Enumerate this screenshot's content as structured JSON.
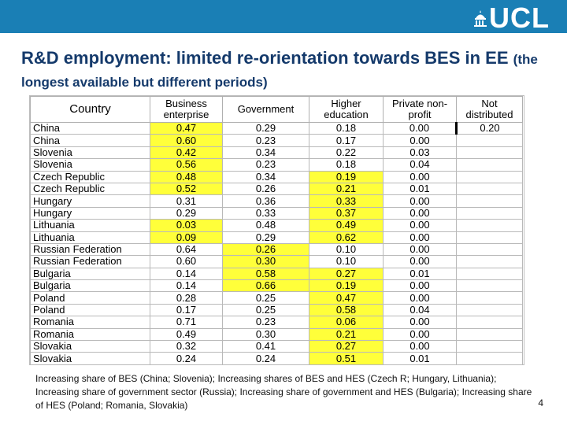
{
  "header": {
    "logo_text": "UCL",
    "accent_color": "#1a7fb5"
  },
  "title": {
    "main": "R&D employment: limited re-orientation towards BES in EE",
    "subtitle": "(the longest available but different periods)"
  },
  "table": {
    "columns": [
      "Country",
      "Business enterprise",
      "Government",
      "Higher education",
      "Private non-profit",
      "Not distributed"
    ],
    "highlight_color": "#ffff3a",
    "rows": [
      {
        "country": "China",
        "values": [
          "0.47",
          "0.29",
          "0.18",
          "0.00",
          "0.20"
        ],
        "highlight": [
          0
        ]
      },
      {
        "country": "China",
        "values": [
          "0.60",
          "0.23",
          "0.17",
          "0.00",
          ""
        ],
        "highlight": [
          0
        ]
      },
      {
        "country": "Slovenia",
        "values": [
          "0.42",
          "0.34",
          "0.22",
          "0.03",
          ""
        ],
        "highlight": [
          0
        ]
      },
      {
        "country": "Slovenia",
        "values": [
          "0.56",
          "0.23",
          "0.18",
          "0.04",
          ""
        ],
        "highlight": [
          0
        ]
      },
      {
        "country": "Czech Republic",
        "values": [
          "0.48",
          "0.34",
          "0.19",
          "0.00",
          ""
        ],
        "highlight": [
          0,
          2
        ]
      },
      {
        "country": "Czech Republic",
        "values": [
          "0.52",
          "0.26",
          "0.21",
          "0.01",
          ""
        ],
        "highlight": [
          0,
          2
        ]
      },
      {
        "country": "Hungary",
        "values": [
          "0.31",
          "0.36",
          "0.33",
          "0.00",
          ""
        ],
        "highlight": [
          2
        ]
      },
      {
        "country": "Hungary",
        "values": [
          "0.29",
          "0.33",
          "0.37",
          "0.00",
          ""
        ],
        "highlight": [
          2
        ]
      },
      {
        "country": "Lithuania",
        "values": [
          "0.03",
          "0.48",
          "0.49",
          "0.00",
          ""
        ],
        "highlight": [
          0,
          2
        ]
      },
      {
        "country": "Lithuania",
        "values": [
          "0.09",
          "0.29",
          "0.62",
          "0.00",
          ""
        ],
        "highlight": [
          0,
          2
        ]
      },
      {
        "country": "Russian Federation",
        "values": [
          "0.64",
          "0.26",
          "0.10",
          "0.00",
          ""
        ],
        "highlight": [
          1
        ]
      },
      {
        "country": "Russian Federation",
        "values": [
          "0.60",
          "0.30",
          "0.10",
          "0.00",
          ""
        ],
        "highlight": [
          1
        ]
      },
      {
        "country": "Bulgaria",
        "values": [
          "0.14",
          "0.58",
          "0.27",
          "0.01",
          ""
        ],
        "highlight": [
          1,
          2
        ]
      },
      {
        "country": "Bulgaria",
        "values": [
          "0.14",
          "0.66",
          "0.19",
          "0.00",
          ""
        ],
        "highlight": [
          1,
          2
        ]
      },
      {
        "country": "Poland",
        "values": [
          "0.28",
          "0.25",
          "0.47",
          "0.00",
          ""
        ],
        "highlight": [
          2
        ]
      },
      {
        "country": "Poland",
        "values": [
          "0.17",
          "0.25",
          "0.58",
          "0.04",
          ""
        ],
        "highlight": [
          2
        ]
      },
      {
        "country": "Romania",
        "values": [
          "0.71",
          "0.23",
          "0.06",
          "0.00",
          ""
        ],
        "highlight": [
          2
        ]
      },
      {
        "country": "Romania",
        "values": [
          "0.49",
          "0.30",
          "0.21",
          "0.00",
          ""
        ],
        "highlight": [
          2
        ]
      },
      {
        "country": "Slovakia",
        "values": [
          "0.32",
          "0.41",
          "0.27",
          "0.00",
          ""
        ],
        "highlight": [
          2
        ]
      },
      {
        "country": "Slovakia",
        "values": [
          "0.24",
          "0.24",
          "0.51",
          "0.01",
          ""
        ],
        "highlight": [
          2
        ]
      }
    ]
  },
  "footnote": "Increasing share of BES (China; Slovenia); Increasing shares of BES and HES (Czech R; Hungary, Lithuania); Increasing share of government sector (Russia); Increasing share of government and HES (Bulgaria); Increasing share of HES (Poland; Romania, Slovakia)",
  "page_number": "4"
}
